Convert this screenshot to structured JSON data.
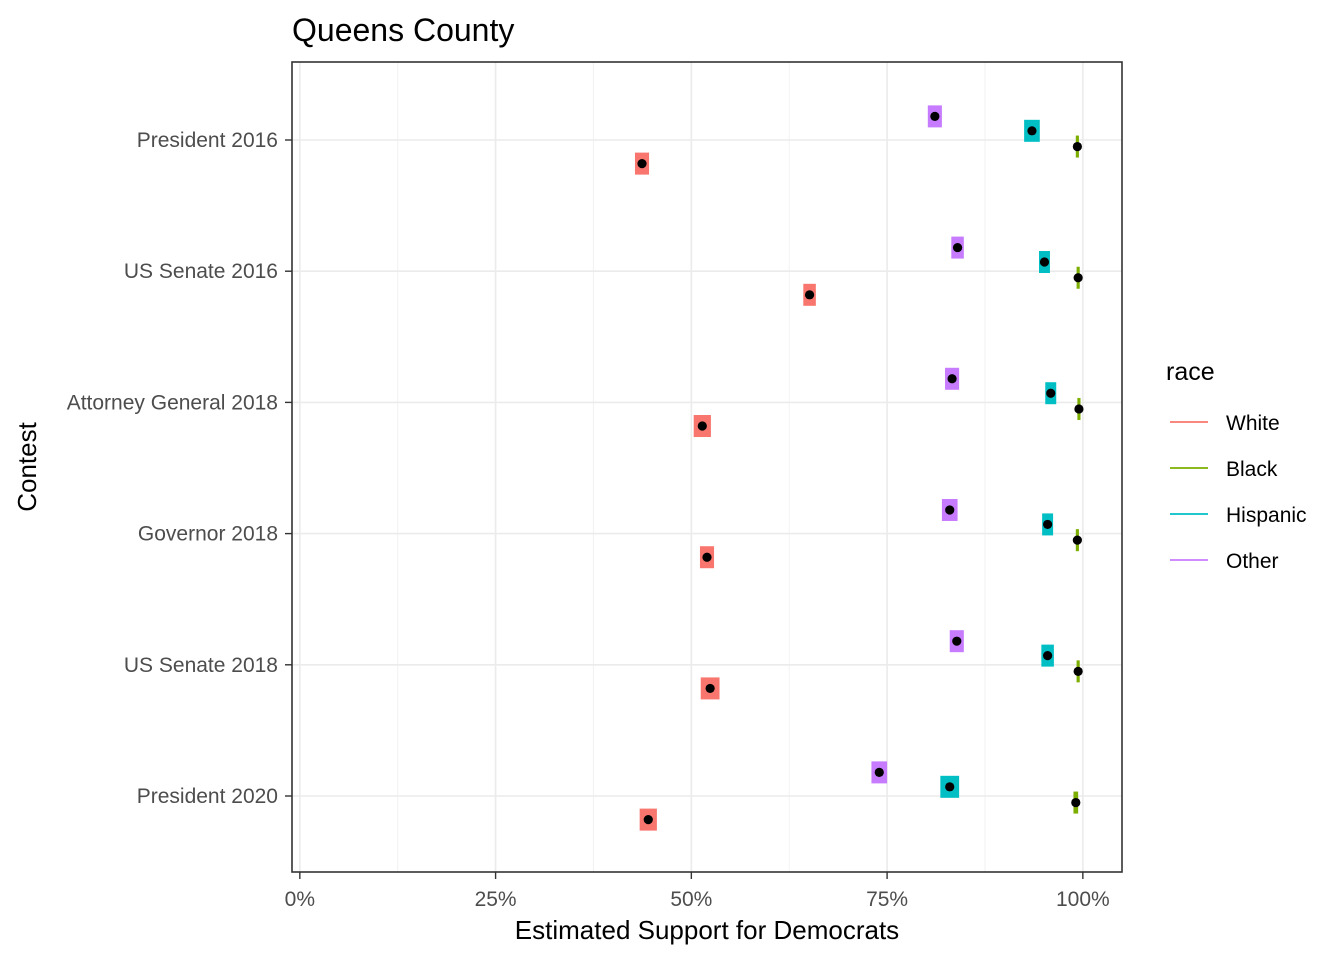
{
  "chart_data": {
    "type": "scatter",
    "title": "Queens County",
    "xlabel": "Estimated Support for Democrats",
    "ylabel": "Contest",
    "xlim": [
      -0.01,
      1.05
    ],
    "x_ticks": [
      {
        "value": 0,
        "label": "0%"
      },
      {
        "value": 0.25,
        "label": "25%"
      },
      {
        "value": 0.5,
        "label": "50%"
      },
      {
        "value": 0.75,
        "label": "75%"
      },
      {
        "value": 1,
        "label": "100%"
      }
    ],
    "categories": [
      "President 2016",
      "US Senate 2016",
      "Attorney General 2018",
      "Governor 2018",
      "US Senate 2018",
      "President 2020"
    ],
    "grid": true,
    "legend": {
      "title": "race",
      "position": "right"
    },
    "series": [
      {
        "name": "White",
        "color": "#F8766D",
        "offset": -0.18,
        "values": [
          0.437,
          0.651,
          0.514,
          0.52,
          0.524,
          0.445
        ],
        "ci": [
          [
            0.428,
            0.446
          ],
          [
            0.643,
            0.659
          ],
          [
            0.503,
            0.525
          ],
          [
            0.511,
            0.529
          ],
          [
            0.512,
            0.536
          ],
          [
            0.434,
            0.456
          ]
        ]
      },
      {
        "name": "Black",
        "color": "#7CAE00",
        "offset": -0.05,
        "values": [
          0.993,
          0.994,
          0.995,
          0.993,
          0.994,
          0.991
        ],
        "ci": [
          [
            0.991,
            0.995
          ],
          [
            0.992,
            0.996
          ],
          [
            0.993,
            0.997
          ],
          [
            0.991,
            0.995
          ],
          [
            0.992,
            0.996
          ],
          [
            0.988,
            0.994
          ]
        ]
      },
      {
        "name": "Hispanic",
        "color": "#00BFC4",
        "offset": 0.07,
        "values": [
          0.935,
          0.951,
          0.959,
          0.955,
          0.955,
          0.83
        ],
        "ci": [
          [
            0.925,
            0.945
          ],
          [
            0.944,
            0.958
          ],
          [
            0.952,
            0.966
          ],
          [
            0.948,
            0.962
          ],
          [
            0.947,
            0.963
          ],
          [
            0.818,
            0.842
          ]
        ]
      },
      {
        "name": "Other",
        "color": "#C77CFF",
        "offset": 0.18,
        "values": [
          0.811,
          0.84,
          0.833,
          0.83,
          0.839,
          0.74
        ],
        "ci": [
          [
            0.802,
            0.82
          ],
          [
            0.832,
            0.848
          ],
          [
            0.824,
            0.842
          ],
          [
            0.82,
            0.84
          ],
          [
            0.83,
            0.848
          ],
          [
            0.73,
            0.75
          ]
        ]
      }
    ]
  }
}
